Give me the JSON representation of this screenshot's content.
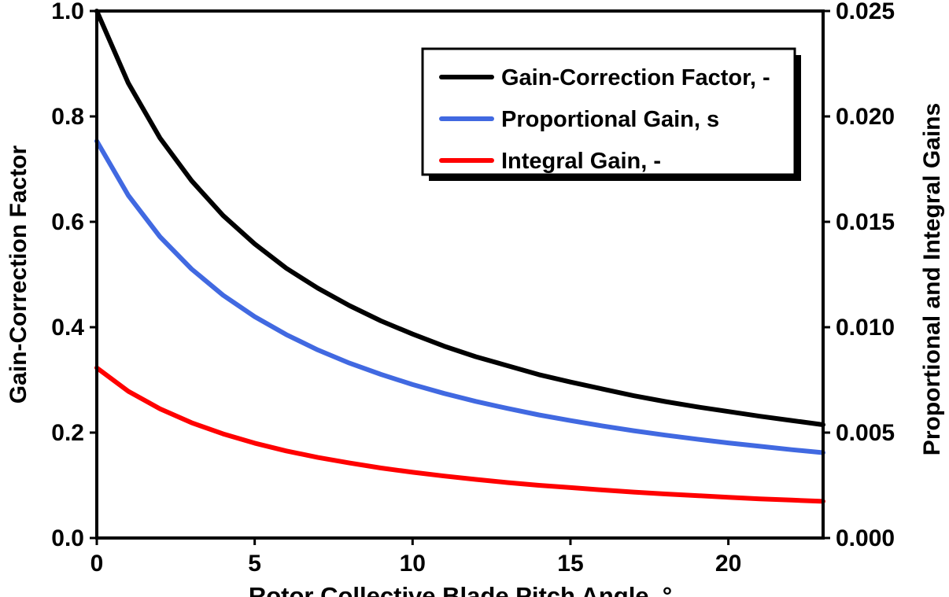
{
  "chart_data": {
    "type": "line",
    "title": "",
    "xlabel": "Rotor Collective Blade Pitch Angle, °",
    "ylabel_left": "Gain-Correction Factor",
    "ylabel_right": "Proportional and Integral Gains",
    "xlim": [
      0,
      23
    ],
    "ylim_left": [
      0.0,
      1.0
    ],
    "ylim_right": [
      0.0,
      0.025
    ],
    "grid": false,
    "legend_position": "top-right",
    "legend_shadow": true,
    "xticks": {
      "values": [
        0,
        5,
        10,
        15,
        20
      ],
      "labels": [
        "0",
        "5",
        "10",
        "15",
        "20"
      ]
    },
    "yticks_left": {
      "values": [
        0.0,
        0.2,
        0.4,
        0.6,
        0.8,
        1.0
      ],
      "labels": [
        "0.0",
        "0.2",
        "0.4",
        "0.6",
        "0.8",
        "1.0"
      ]
    },
    "yticks_right": {
      "values": [
        0.0,
        0.005,
        0.01,
        0.015,
        0.02,
        0.025
      ],
      "labels": [
        "0.000",
        "0.005",
        "0.010",
        "0.015",
        "0.020",
        "0.025"
      ]
    },
    "x": [
      0,
      1,
      2,
      3,
      4,
      5,
      6,
      7,
      8,
      9,
      10,
      11,
      12,
      13,
      14,
      15,
      16,
      17,
      18,
      19,
      20,
      21,
      22,
      23
    ],
    "series": [
      {
        "name": "Gain-Correction Factor, -",
        "axis": "left",
        "color": "#000000",
        "values": [
          1.0,
          0.863,
          0.759,
          0.678,
          0.612,
          0.558,
          0.512,
          0.474,
          0.441,
          0.412,
          0.387,
          0.364,
          0.344,
          0.327,
          0.31,
          0.296,
          0.283,
          0.27,
          0.259,
          0.249,
          0.24,
          0.231,
          0.223,
          0.215
        ]
      },
      {
        "name": "Proportional Gain, s",
        "axis": "right",
        "color": "#4169E1",
        "values": [
          0.01883,
          0.01625,
          0.01429,
          0.01276,
          0.01152,
          0.0105,
          0.00965,
          0.00892,
          0.0083,
          0.00776,
          0.00728,
          0.00686,
          0.00648,
          0.00615,
          0.00584,
          0.00557,
          0.00532,
          0.00509,
          0.00488,
          0.00469,
          0.00451,
          0.00435,
          0.00419,
          0.00405
        ]
      },
      {
        "name": "Integral Gain, -",
        "axis": "right",
        "color": "#FF0000",
        "values": [
          0.00807,
          0.00696,
          0.00613,
          0.00547,
          0.00494,
          0.0045,
          0.00413,
          0.00382,
          0.00356,
          0.00332,
          0.00312,
          0.00294,
          0.00278,
          0.00263,
          0.0025,
          0.00239,
          0.00228,
          0.00218,
          0.00209,
          0.00201,
          0.00193,
          0.00186,
          0.0018,
          0.00174
        ]
      }
    ]
  }
}
